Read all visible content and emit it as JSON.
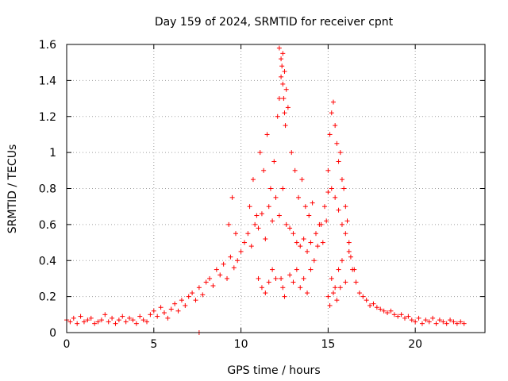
{
  "chart_data": {
    "type": "scatter",
    "title": "Day 159 of 2024, SRMTID for receiver cpnt",
    "xlabel": "GPS time / hours",
    "ylabel": "SRMTID / TECUs",
    "xlim": [
      0,
      24
    ],
    "ylim": [
      0,
      1.6
    ],
    "xticks": [
      0,
      5,
      10,
      15,
      20
    ],
    "xtick_labels": [
      "0",
      "5",
      "10",
      "15",
      "20"
    ],
    "yticks": [
      0,
      0.2,
      0.4,
      0.6,
      0.8,
      1,
      1.2,
      1.4,
      1.6
    ],
    "ytick_labels": [
      "0",
      "0.2",
      "0.4",
      "0.6",
      "0.8",
      "1",
      "1.2",
      "1.4",
      "1.6"
    ],
    "grid": true,
    "marker": "+",
    "series_color": "#ff0000",
    "series": [
      {
        "name": "SRMTID",
        "x": [
          0.0,
          0.2,
          0.4,
          0.6,
          0.8,
          1.0,
          1.2,
          1.4,
          1.6,
          1.8,
          2.0,
          2.2,
          2.4,
          2.6,
          2.8,
          3.0,
          3.2,
          3.4,
          3.6,
          3.8,
          4.0,
          4.2,
          4.4,
          4.6,
          4.8,
          5.0,
          5.2,
          5.4,
          5.6,
          5.8,
          6.0,
          6.2,
          6.4,
          6.6,
          6.8,
          7.0,
          7.2,
          7.4,
          7.6,
          7.8,
          8.0,
          8.2,
          8.4,
          8.6,
          8.8,
          9.0,
          9.2,
          9.4,
          9.6,
          9.8,
          10.0,
          10.2,
          10.4,
          10.6,
          10.8,
          11.0,
          11.2,
          11.4,
          11.6,
          11.8,
          12.0,
          12.2,
          12.4,
          12.6,
          12.8,
          13.0,
          13.2,
          13.4,
          13.6,
          13.8,
          14.0,
          14.2,
          14.4,
          14.6,
          14.8,
          15.0,
          15.2,
          15.4,
          15.6,
          15.8,
          16.0,
          16.2,
          16.4,
          16.6,
          16.8,
          17.0,
          17.2,
          17.4,
          17.6,
          17.8,
          18.0,
          18.2,
          18.4,
          18.6,
          18.8,
          19.0,
          19.2,
          19.4,
          19.6,
          19.8,
          20.0,
          20.2,
          20.4,
          20.6,
          20.8,
          21.0,
          21.2,
          21.4,
          21.6,
          21.8,
          22.0,
          22.2,
          22.4,
          22.6,
          22.8,
          9.3,
          9.5,
          9.7,
          10.5,
          10.7,
          10.9,
          11.1,
          11.3,
          11.5,
          11.7,
          11.9,
          12.1,
          12.2,
          12.3,
          12.4,
          12.5,
          12.6,
          12.7,
          12.9,
          13.1,
          13.3,
          13.5,
          13.7,
          13.9,
          14.1,
          14.3,
          14.5,
          14.7,
          14.9,
          15.0,
          15.1,
          15.2,
          15.3,
          15.4,
          15.5,
          15.6,
          15.7,
          15.8,
          15.9,
          16.0,
          16.1,
          16.2,
          16.3,
          16.5,
          12.2,
          12.3,
          12.35,
          12.4,
          12.45,
          12.5,
          12.55,
          12.3,
          12.4,
          12.5,
          11.0,
          11.2,
          11.4,
          11.6,
          11.8,
          12.0,
          12.8,
          13.0,
          13.2,
          13.4,
          13.6,
          13.8,
          14.0,
          15.0,
          15.2,
          15.4,
          15.6,
          15.8,
          16.0,
          15.1,
          15.3,
          15.5,
          15.7,
          7.6
        ],
        "y": [
          0.07,
          0.06,
          0.08,
          0.05,
          0.09,
          0.06,
          0.07,
          0.08,
          0.05,
          0.06,
          0.07,
          0.1,
          0.06,
          0.08,
          0.05,
          0.07,
          0.09,
          0.06,
          0.08,
          0.07,
          0.05,
          0.09,
          0.07,
          0.06,
          0.1,
          0.12,
          0.09,
          0.14,
          0.11,
          0.08,
          0.13,
          0.16,
          0.12,
          0.18,
          0.15,
          0.2,
          0.22,
          0.18,
          0.25,
          0.21,
          0.28,
          0.3,
          0.26,
          0.35,
          0.32,
          0.38,
          0.3,
          0.42,
          0.36,
          0.4,
          0.45,
          0.5,
          0.55,
          0.48,
          0.6,
          0.58,
          0.66,
          0.52,
          0.7,
          0.62,
          0.75,
          0.65,
          0.8,
          0.6,
          0.58,
          0.55,
          0.5,
          0.48,
          0.52,
          0.45,
          0.5,
          0.4,
          0.48,
          0.6,
          0.7,
          0.78,
          0.8,
          0.75,
          0.68,
          0.6,
          0.55,
          0.45,
          0.35,
          0.28,
          0.22,
          0.2,
          0.18,
          0.15,
          0.16,
          0.14,
          0.13,
          0.12,
          0.11,
          0.12,
          0.1,
          0.09,
          0.1,
          0.08,
          0.09,
          0.07,
          0.06,
          0.08,
          0.05,
          0.07,
          0.06,
          0.08,
          0.05,
          0.07,
          0.06,
          0.05,
          0.07,
          0.06,
          0.05,
          0.06,
          0.05,
          0.6,
          0.75,
          0.55,
          0.7,
          0.85,
          0.65,
          1.0,
          0.9,
          1.1,
          0.8,
          0.95,
          1.2,
          1.3,
          1.42,
          1.55,
          1.45,
          1.35,
          1.25,
          1.0,
          0.9,
          0.75,
          0.85,
          0.7,
          0.65,
          0.72,
          0.55,
          0.6,
          0.5,
          0.62,
          0.9,
          1.1,
          1.22,
          1.28,
          1.15,
          1.05,
          0.95,
          1.0,
          0.85,
          0.8,
          0.7,
          0.62,
          0.5,
          0.42,
          0.35,
          1.58,
          1.52,
          1.48,
          1.38,
          1.3,
          1.22,
          1.15,
          0.3,
          0.25,
          0.2,
          0.3,
          0.25,
          0.22,
          0.28,
          0.35,
          0.3,
          0.32,
          0.28,
          0.35,
          0.25,
          0.3,
          0.22,
          0.35,
          0.2,
          0.3,
          0.25,
          0.35,
          0.4,
          0.28,
          0.15,
          0.22,
          0.18,
          0.25,
          0.0
        ]
      }
    ]
  }
}
